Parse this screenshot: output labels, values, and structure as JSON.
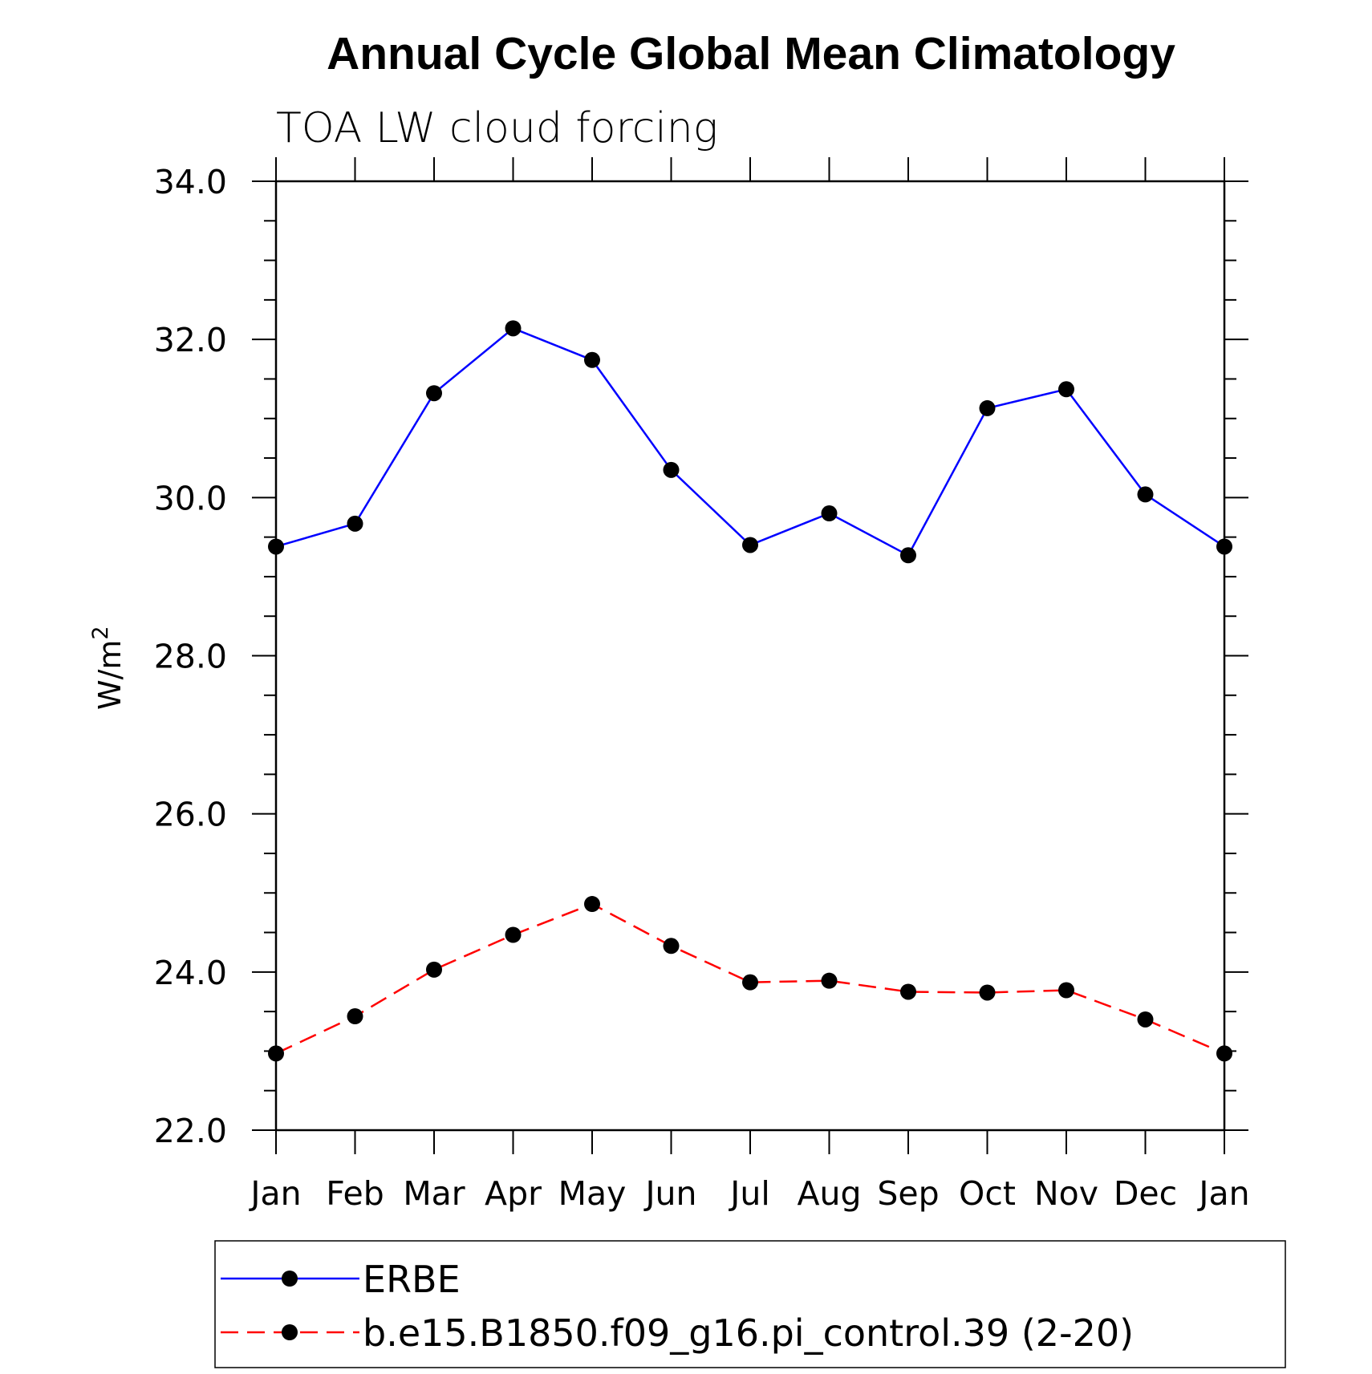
{
  "chart_data": {
    "type": "line",
    "title": "Annual Cycle Global Mean Climatology",
    "subtitle": "TOA LW cloud forcing",
    "ylabel": "W/m",
    "ylabel_superscript": "2",
    "xlabel": "",
    "categories": [
      "Jan",
      "Feb",
      "Mar",
      "Apr",
      "May",
      "Jun",
      "Jul",
      "Aug",
      "Sep",
      "Oct",
      "Nov",
      "Dec",
      "Jan"
    ],
    "ylim": [
      22.0,
      34.0
    ],
    "yticks": [
      "22.0",
      "24.0",
      "26.0",
      "28.0",
      "30.0",
      "32.0",
      "34.0"
    ],
    "grid": false,
    "legend_position": "bottom",
    "series": [
      {
        "name": "ERBE",
        "color": "#0000ff",
        "line_style": "solid",
        "marker": "filled-circle",
        "values": [
          29.38,
          29.67,
          31.32,
          32.14,
          31.74,
          30.35,
          29.4,
          29.8,
          29.27,
          31.13,
          31.37,
          30.04,
          29.38
        ]
      },
      {
        "name": "b.e15.B1850.f09_g16.pi_control.39 (2-20)",
        "color": "#ff0000",
        "line_style": "dashed",
        "marker": "filled-circle",
        "values": [
          22.97,
          23.44,
          24.03,
          24.47,
          24.86,
          24.33,
          23.87,
          23.89,
          23.75,
          23.74,
          23.77,
          23.4,
          22.97
        ]
      }
    ]
  }
}
